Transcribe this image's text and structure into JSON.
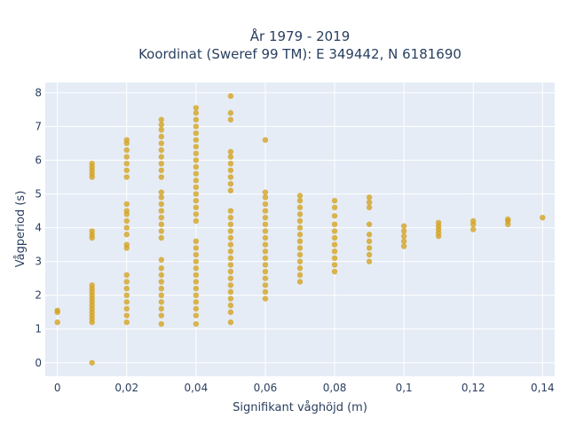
{
  "chart_data": {
    "type": "scatter",
    "title_line1": "År 1979 - 2019",
    "title_line2": "Koordinat (Sweref 99 TM): E 349442, N 6181690",
    "xlabel": "Signifikant våghöjd (m)",
    "ylabel": "Vågperiod (s)",
    "xlim": [
      -0.0035,
      0.1435
    ],
    "ylim": [
      -0.4,
      8.3
    ],
    "grid": true,
    "xticks": [
      0,
      0.02,
      0.04,
      0.06,
      0.08,
      0.1,
      0.12,
      0.14
    ],
    "xtick_labels": [
      "0",
      "0,02",
      "0,04",
      "0,06",
      "0,08",
      "0,1",
      "0,12",
      "0,14"
    ],
    "yticks": [
      0,
      1,
      2,
      3,
      4,
      5,
      6,
      7,
      8
    ],
    "ytick_labels": [
      "0",
      "1",
      "2",
      "3",
      "4",
      "5",
      "6",
      "7",
      "8"
    ],
    "marker_color": "#d4a21c",
    "series": [
      {
        "points": [
          {
            "x": 0.0,
            "y": 1.2
          },
          {
            "x": 0.0,
            "y": 1.5
          },
          {
            "x": 0.0,
            "y": 1.55
          },
          {
            "x": 0.01,
            "y": 0.0
          },
          {
            "x": 0.01,
            "y": 1.2
          },
          {
            "x": 0.01,
            "y": 1.3
          },
          {
            "x": 0.01,
            "y": 1.4
          },
          {
            "x": 0.01,
            "y": 1.5
          },
          {
            "x": 0.01,
            "y": 1.6
          },
          {
            "x": 0.01,
            "y": 1.7
          },
          {
            "x": 0.01,
            "y": 1.8
          },
          {
            "x": 0.01,
            "y": 1.9
          },
          {
            "x": 0.01,
            "y": 2.0
          },
          {
            "x": 0.01,
            "y": 2.1
          },
          {
            "x": 0.01,
            "y": 2.2
          },
          {
            "x": 0.01,
            "y": 2.3
          },
          {
            "x": 0.01,
            "y": 3.7
          },
          {
            "x": 0.01,
            "y": 3.8
          },
          {
            "x": 0.01,
            "y": 3.9
          },
          {
            "x": 0.01,
            "y": 5.5
          },
          {
            "x": 0.01,
            "y": 5.6
          },
          {
            "x": 0.01,
            "y": 5.7
          },
          {
            "x": 0.01,
            "y": 5.8
          },
          {
            "x": 0.01,
            "y": 5.9
          },
          {
            "x": 0.02,
            "y": 1.2
          },
          {
            "x": 0.02,
            "y": 1.4
          },
          {
            "x": 0.02,
            "y": 1.6
          },
          {
            "x": 0.02,
            "y": 1.8
          },
          {
            "x": 0.02,
            "y": 2.0
          },
          {
            "x": 0.02,
            "y": 2.2
          },
          {
            "x": 0.02,
            "y": 2.4
          },
          {
            "x": 0.02,
            "y": 2.6
          },
          {
            "x": 0.02,
            "y": 3.4
          },
          {
            "x": 0.02,
            "y": 3.5
          },
          {
            "x": 0.02,
            "y": 3.8
          },
          {
            "x": 0.02,
            "y": 4.0
          },
          {
            "x": 0.02,
            "y": 4.2
          },
          {
            "x": 0.02,
            "y": 4.4
          },
          {
            "x": 0.02,
            "y": 4.5
          },
          {
            "x": 0.02,
            "y": 4.7
          },
          {
            "x": 0.02,
            "y": 5.5
          },
          {
            "x": 0.02,
            "y": 5.7
          },
          {
            "x": 0.02,
            "y": 5.9
          },
          {
            "x": 0.02,
            "y": 6.1
          },
          {
            "x": 0.02,
            "y": 6.3
          },
          {
            "x": 0.02,
            "y": 6.5
          },
          {
            "x": 0.02,
            "y": 6.6
          },
          {
            "x": 0.03,
            "y": 1.15
          },
          {
            "x": 0.03,
            "y": 1.4
          },
          {
            "x": 0.03,
            "y": 1.6
          },
          {
            "x": 0.03,
            "y": 1.8
          },
          {
            "x": 0.03,
            "y": 2.0
          },
          {
            "x": 0.03,
            "y": 2.2
          },
          {
            "x": 0.03,
            "y": 2.4
          },
          {
            "x": 0.03,
            "y": 2.6
          },
          {
            "x": 0.03,
            "y": 2.8
          },
          {
            "x": 0.03,
            "y": 3.05
          },
          {
            "x": 0.03,
            "y": 3.7
          },
          {
            "x": 0.03,
            "y": 3.9
          },
          {
            "x": 0.03,
            "y": 4.1
          },
          {
            "x": 0.03,
            "y": 4.3
          },
          {
            "x": 0.03,
            "y": 4.5
          },
          {
            "x": 0.03,
            "y": 4.7
          },
          {
            "x": 0.03,
            "y": 4.9
          },
          {
            "x": 0.03,
            "y": 5.05
          },
          {
            "x": 0.03,
            "y": 5.5
          },
          {
            "x": 0.03,
            "y": 5.7
          },
          {
            "x": 0.03,
            "y": 5.9
          },
          {
            "x": 0.03,
            "y": 6.1
          },
          {
            "x": 0.03,
            "y": 6.3
          },
          {
            "x": 0.03,
            "y": 6.5
          },
          {
            "x": 0.03,
            "y": 6.7
          },
          {
            "x": 0.03,
            "y": 6.9
          },
          {
            "x": 0.03,
            "y": 7.05
          },
          {
            "x": 0.03,
            "y": 7.2
          },
          {
            "x": 0.04,
            "y": 1.15
          },
          {
            "x": 0.04,
            "y": 1.4
          },
          {
            "x": 0.04,
            "y": 1.6
          },
          {
            "x": 0.04,
            "y": 1.8
          },
          {
            "x": 0.04,
            "y": 2.0
          },
          {
            "x": 0.04,
            "y": 2.2
          },
          {
            "x": 0.04,
            "y": 2.4
          },
          {
            "x": 0.04,
            "y": 2.6
          },
          {
            "x": 0.04,
            "y": 2.8
          },
          {
            "x": 0.04,
            "y": 3.0
          },
          {
            "x": 0.04,
            "y": 3.2
          },
          {
            "x": 0.04,
            "y": 3.4
          },
          {
            "x": 0.04,
            "y": 3.6
          },
          {
            "x": 0.04,
            "y": 4.2
          },
          {
            "x": 0.04,
            "y": 4.4
          },
          {
            "x": 0.04,
            "y": 4.6
          },
          {
            "x": 0.04,
            "y": 4.8
          },
          {
            "x": 0.04,
            "y": 5.0
          },
          {
            "x": 0.04,
            "y": 5.2
          },
          {
            "x": 0.04,
            "y": 5.4
          },
          {
            "x": 0.04,
            "y": 5.6
          },
          {
            "x": 0.04,
            "y": 5.8
          },
          {
            "x": 0.04,
            "y": 6.0
          },
          {
            "x": 0.04,
            "y": 6.2
          },
          {
            "x": 0.04,
            "y": 6.4
          },
          {
            "x": 0.04,
            "y": 6.6
          },
          {
            "x": 0.04,
            "y": 6.8
          },
          {
            "x": 0.04,
            "y": 7.0
          },
          {
            "x": 0.04,
            "y": 7.2
          },
          {
            "x": 0.04,
            "y": 7.4
          },
          {
            "x": 0.04,
            "y": 7.55
          },
          {
            "x": 0.05,
            "y": 1.2
          },
          {
            "x": 0.05,
            "y": 1.5
          },
          {
            "x": 0.05,
            "y": 1.7
          },
          {
            "x": 0.05,
            "y": 1.9
          },
          {
            "x": 0.05,
            "y": 2.1
          },
          {
            "x": 0.05,
            "y": 2.3
          },
          {
            "x": 0.05,
            "y": 2.5
          },
          {
            "x": 0.05,
            "y": 2.7
          },
          {
            "x": 0.05,
            "y": 2.9
          },
          {
            "x": 0.05,
            "y": 3.1
          },
          {
            "x": 0.05,
            "y": 3.3
          },
          {
            "x": 0.05,
            "y": 3.5
          },
          {
            "x": 0.05,
            "y": 3.7
          },
          {
            "x": 0.05,
            "y": 3.9
          },
          {
            "x": 0.05,
            "y": 4.1
          },
          {
            "x": 0.05,
            "y": 4.3
          },
          {
            "x": 0.05,
            "y": 4.5
          },
          {
            "x": 0.05,
            "y": 5.1
          },
          {
            "x": 0.05,
            "y": 5.3
          },
          {
            "x": 0.05,
            "y": 5.5
          },
          {
            "x": 0.05,
            "y": 5.7
          },
          {
            "x": 0.05,
            "y": 5.9
          },
          {
            "x": 0.05,
            "y": 6.1
          },
          {
            "x": 0.05,
            "y": 6.25
          },
          {
            "x": 0.05,
            "y": 7.2
          },
          {
            "x": 0.05,
            "y": 7.4
          },
          {
            "x": 0.05,
            "y": 7.9
          },
          {
            "x": 0.06,
            "y": 1.9
          },
          {
            "x": 0.06,
            "y": 2.1
          },
          {
            "x": 0.06,
            "y": 2.3
          },
          {
            "x": 0.06,
            "y": 2.5
          },
          {
            "x": 0.06,
            "y": 2.7
          },
          {
            "x": 0.06,
            "y": 2.9
          },
          {
            "x": 0.06,
            "y": 3.1
          },
          {
            "x": 0.06,
            "y": 3.3
          },
          {
            "x": 0.06,
            "y": 3.5
          },
          {
            "x": 0.06,
            "y": 3.7
          },
          {
            "x": 0.06,
            "y": 3.9
          },
          {
            "x": 0.06,
            "y": 4.1
          },
          {
            "x": 0.06,
            "y": 4.3
          },
          {
            "x": 0.06,
            "y": 4.5
          },
          {
            "x": 0.06,
            "y": 4.7
          },
          {
            "x": 0.06,
            "y": 4.9
          },
          {
            "x": 0.06,
            "y": 5.05
          },
          {
            "x": 0.06,
            "y": 6.6
          },
          {
            "x": 0.07,
            "y": 2.4
          },
          {
            "x": 0.07,
            "y": 2.6
          },
          {
            "x": 0.07,
            "y": 2.8
          },
          {
            "x": 0.07,
            "y": 3.0
          },
          {
            "x": 0.07,
            "y": 3.2
          },
          {
            "x": 0.07,
            "y": 3.4
          },
          {
            "x": 0.07,
            "y": 3.6
          },
          {
            "x": 0.07,
            "y": 3.8
          },
          {
            "x": 0.07,
            "y": 4.0
          },
          {
            "x": 0.07,
            "y": 4.2
          },
          {
            "x": 0.07,
            "y": 4.4
          },
          {
            "x": 0.07,
            "y": 4.6
          },
          {
            "x": 0.07,
            "y": 4.8
          },
          {
            "x": 0.07,
            "y": 4.95
          },
          {
            "x": 0.08,
            "y": 2.7
          },
          {
            "x": 0.08,
            "y": 2.9
          },
          {
            "x": 0.08,
            "y": 3.1
          },
          {
            "x": 0.08,
            "y": 3.3
          },
          {
            "x": 0.08,
            "y": 3.5
          },
          {
            "x": 0.08,
            "y": 3.7
          },
          {
            "x": 0.08,
            "y": 3.9
          },
          {
            "x": 0.08,
            "y": 4.1
          },
          {
            "x": 0.08,
            "y": 4.35
          },
          {
            "x": 0.08,
            "y": 4.6
          },
          {
            "x": 0.08,
            "y": 4.8
          },
          {
            "x": 0.09,
            "y": 3.0
          },
          {
            "x": 0.09,
            "y": 3.2
          },
          {
            "x": 0.09,
            "y": 3.4
          },
          {
            "x": 0.09,
            "y": 3.6
          },
          {
            "x": 0.09,
            "y": 3.8
          },
          {
            "x": 0.09,
            "y": 4.1
          },
          {
            "x": 0.09,
            "y": 4.6
          },
          {
            "x": 0.09,
            "y": 4.75
          },
          {
            "x": 0.09,
            "y": 4.9
          },
          {
            "x": 0.1,
            "y": 3.45
          },
          {
            "x": 0.1,
            "y": 3.6
          },
          {
            "x": 0.1,
            "y": 3.75
          },
          {
            "x": 0.1,
            "y": 3.9
          },
          {
            "x": 0.1,
            "y": 4.05
          },
          {
            "x": 0.11,
            "y": 3.75
          },
          {
            "x": 0.11,
            "y": 3.85
          },
          {
            "x": 0.11,
            "y": 3.95
          },
          {
            "x": 0.11,
            "y": 4.05
          },
          {
            "x": 0.11,
            "y": 4.15
          },
          {
            "x": 0.12,
            "y": 3.95
          },
          {
            "x": 0.12,
            "y": 4.1
          },
          {
            "x": 0.12,
            "y": 4.2
          },
          {
            "x": 0.13,
            "y": 4.1
          },
          {
            "x": 0.13,
            "y": 4.2
          },
          {
            "x": 0.13,
            "y": 4.25
          },
          {
            "x": 0.14,
            "y": 4.3
          }
        ]
      }
    ]
  }
}
